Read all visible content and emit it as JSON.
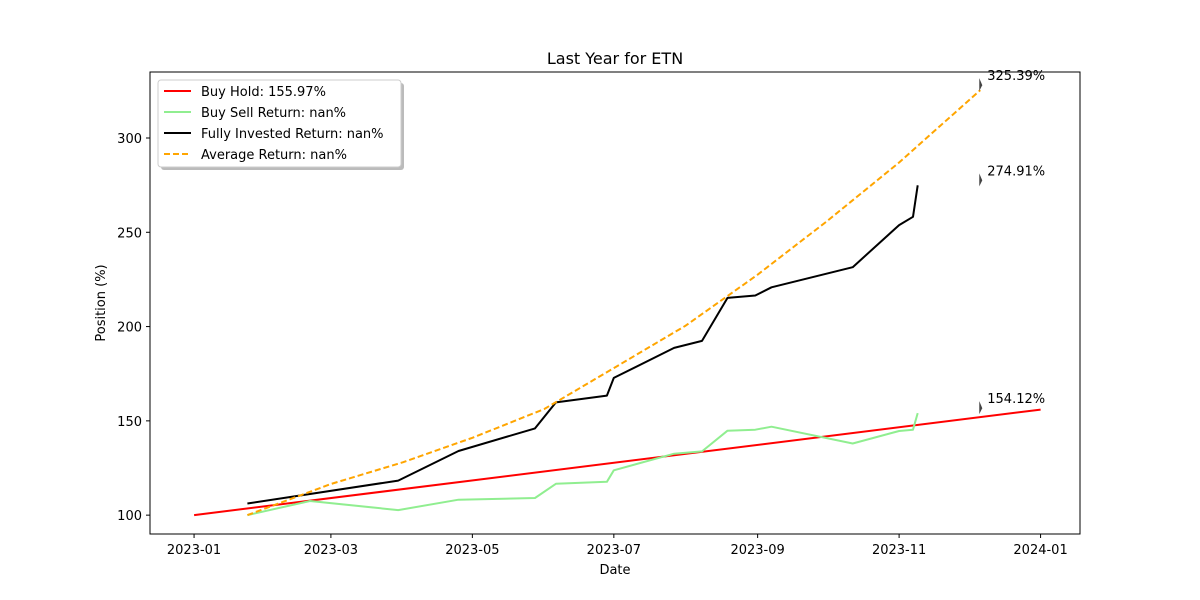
{
  "chart_data": {
    "type": "line",
    "title": "Last Year for ETN",
    "xlabel": "Date",
    "ylabel": "Position (%)",
    "xlim": [
      "2022-12-13",
      "2024-01-18"
    ],
    "ylim": [
      90,
      335
    ],
    "x_ticks": [
      "2023-01-01",
      "2023-03-01",
      "2023-05-01",
      "2023-07-01",
      "2023-09-01",
      "2023-11-01",
      "2024-01-01"
    ],
    "x_tick_labels": [
      "2023-01",
      "2023-03",
      "2023-05",
      "2023-07",
      "2023-09",
      "2023-11",
      "2024-01"
    ],
    "y_ticks": [
      100,
      150,
      200,
      250,
      300
    ],
    "grid": false,
    "legend_position": "upper-left",
    "series": [
      {
        "name": "Buy Hold: 155.97%",
        "color": "#ff0000",
        "style": "solid",
        "points": [
          [
            "2023-01-01",
            100
          ],
          [
            "2024-01-01",
            155.97
          ]
        ]
      },
      {
        "name": "Buy Sell Return: nan%",
        "color": "#90ee90",
        "style": "solid",
        "points": [
          [
            "2023-01-24",
            100
          ],
          [
            "2023-02-20",
            107.5
          ],
          [
            "2023-03-30",
            102.7
          ],
          [
            "2023-04-25",
            108.2
          ],
          [
            "2023-05-28",
            109.1
          ],
          [
            "2023-06-06",
            116.6
          ],
          [
            "2023-06-28",
            117.7
          ],
          [
            "2023-07-01",
            123.8
          ],
          [
            "2023-07-27",
            132.6
          ],
          [
            "2023-08-08",
            133.8
          ],
          [
            "2023-08-19",
            144.8
          ],
          [
            "2023-08-31",
            145.3
          ],
          [
            "2023-09-07",
            146.9
          ],
          [
            "2023-10-12",
            138.0
          ],
          [
            "2023-11-01",
            144.6
          ],
          [
            "2023-11-07",
            145.3
          ],
          [
            "2023-11-09",
            154.1
          ]
        ]
      },
      {
        "name": "Fully Invested Return: nan%",
        "color": "#000000",
        "style": "solid",
        "points": [
          [
            "2023-01-24",
            106.2
          ],
          [
            "2023-03-30",
            118.3
          ],
          [
            "2023-04-25",
            134.0
          ],
          [
            "2023-05-28",
            146.0
          ],
          [
            "2023-06-06",
            159.8
          ],
          [
            "2023-06-28",
            163.4
          ],
          [
            "2023-07-01",
            172.8
          ],
          [
            "2023-07-27",
            188.7
          ],
          [
            "2023-08-08",
            192.4
          ],
          [
            "2023-08-19",
            215.2
          ],
          [
            "2023-08-31",
            216.5
          ],
          [
            "2023-09-07",
            220.8
          ],
          [
            "2023-10-12",
            231.5
          ],
          [
            "2023-11-01",
            253.8
          ],
          [
            "2023-11-07",
            258.2
          ],
          [
            "2023-11-09",
            274.9
          ]
        ]
      },
      {
        "name": "Average Return: nan%",
        "color": "#ffa500",
        "style": "dashed",
        "points": [
          [
            "2023-01-24",
            100
          ],
          [
            "2023-03-01",
            116.5
          ],
          [
            "2023-04-01",
            128.0
          ],
          [
            "2023-05-01",
            141.0
          ],
          [
            "2023-06-01",
            156.3
          ],
          [
            "2023-07-01",
            178.0
          ],
          [
            "2023-08-01",
            200.5
          ],
          [
            "2023-09-01",
            227.5
          ],
          [
            "2023-10-01",
            256.0
          ],
          [
            "2023-11-01",
            287.0
          ],
          [
            "2023-12-06",
            325.39
          ]
        ]
      }
    ],
    "annotations": [
      {
        "text": "325.39%",
        "x": "2023-12-06",
        "y": 325.39
      },
      {
        "text": "274.91%",
        "x": "2023-12-06",
        "y": 274.91
      },
      {
        "text": "154.12%",
        "x": "2023-12-06",
        "y": 154.12
      }
    ]
  }
}
